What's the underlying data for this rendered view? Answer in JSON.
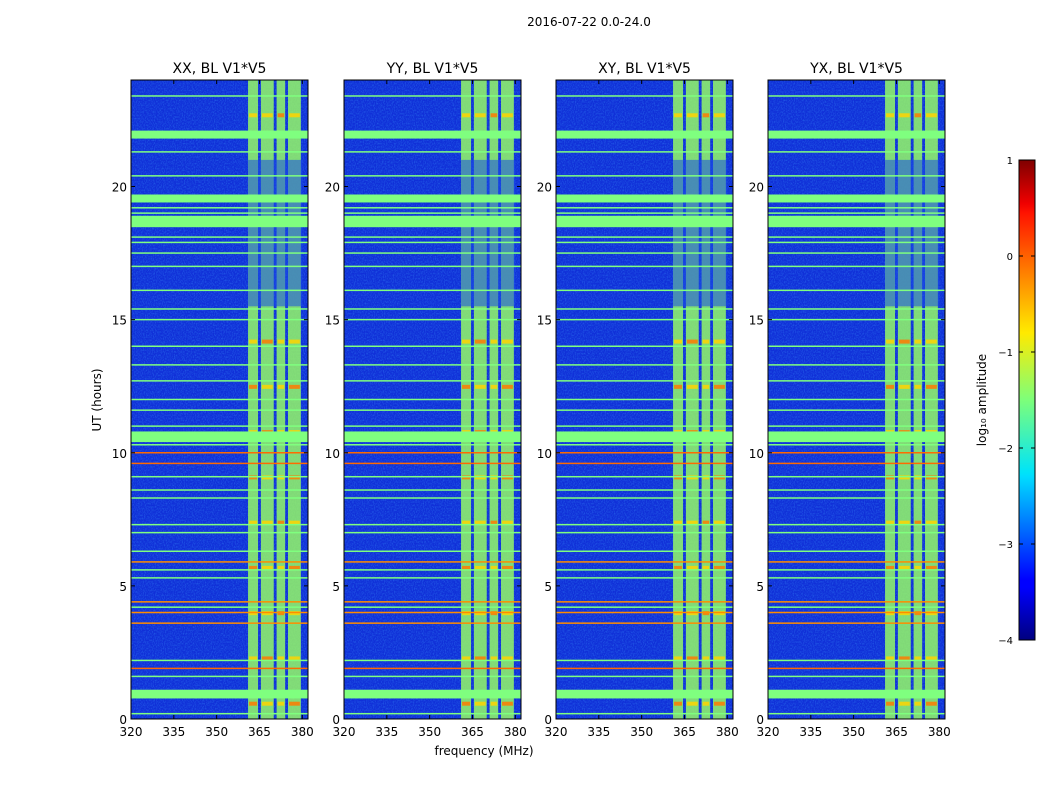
{
  "figure": {
    "suptitle": "2016-07-22 0.0-24.0",
    "xlabel": "frequency (MHz)",
    "ylabel": "UT (hours)"
  },
  "chart_data": {
    "type": "heatmap",
    "title": "2016-07-22 0.0-24.0",
    "xlabel": "frequency (MHz)",
    "ylabel": "UT (hours)",
    "xlim": [
      320,
      382
    ],
    "ylim": [
      0,
      24
    ],
    "xticks": [
      "320",
      "335",
      "350",
      "365",
      "380"
    ],
    "xtick_values": [
      320,
      335,
      350,
      365,
      380
    ],
    "yticks": [
      "0",
      "5",
      "10",
      "15",
      "20"
    ],
    "ytick_values": [
      0,
      5,
      10,
      15,
      20
    ],
    "panels": [
      {
        "title": "XX, BL V1*V5"
      },
      {
        "title": "YY, BL V1*V5"
      },
      {
        "title": "XY, BL V1*V5"
      },
      {
        "title": "YX, BL V1*V5"
      }
    ],
    "colorbar": {
      "label": "log₁₀ amplitude",
      "vmin": -4,
      "vmax": 1,
      "ticks": [
        "1",
        "0",
        "−1",
        "−2",
        "−3",
        "−4"
      ],
      "tick_values": [
        1,
        0,
        -1,
        -2,
        -3,
        -4
      ],
      "colormap": "jet"
    },
    "rfi_band_mhz": [
      361,
      380
    ],
    "rfi_subbands_mhz": [
      [
        361,
        364.5
      ],
      [
        365.5,
        370
      ],
      [
        371,
        374
      ],
      [
        375,
        379.5
      ]
    ],
    "flagged_hours": [
      0.2,
      0.8,
      1.0,
      1.6,
      1.9,
      2.2,
      3.6,
      4.0,
      4.2,
      4.4,
      5.3,
      5.6,
      5.9,
      6.3,
      7.0,
      7.3,
      8.3,
      8.6,
      9.1,
      9.6,
      10.0,
      10.3,
      10.7,
      11.0,
      11.6,
      12.0,
      12.7,
      13.3,
      14.0,
      15.0,
      15.4,
      16.1,
      17.0,
      17.5,
      17.9,
      18.1,
      18.5,
      19.0,
      19.2,
      19.5,
      20.4,
      21.3,
      21.9,
      23.4
    ],
    "flagged_colors": [
      "#7fff7f",
      "#7fff7f",
      "#ff8c00",
      "#7fff7f",
      "#ff6a00",
      "#7fff7f",
      "#ff8c00",
      "#ff8c00",
      "#7fff7f",
      "#ff8c00",
      "#7fff7f",
      "#7fff7f",
      "#ff8c00",
      "#7fff7f",
      "#7fff7f",
      "#7fff7f",
      "#7fff7f",
      "#7fff7f",
      "#7fff7f",
      "#ff6a00",
      "#ff6a00",
      "#7fff7f",
      "#7fff7f",
      "#7fff7f",
      "#7fff7f",
      "#7fff7f",
      "#7fff7f",
      "#7fff7f",
      "#7fff7f",
      "#7fff7f",
      "#7fff7f",
      "#7fff7f",
      "#7fff7f",
      "#7fff7f",
      "#7fff7f",
      "#7fff7f",
      "#7fff7f",
      "#7fff7f",
      "#7fff7f",
      "#7fff7f",
      "#7fff7f",
      "#7fff7f",
      "#7fff7f",
      "#7fff7f"
    ],
    "wide_flagged_bands_hours": [
      [
        0.8,
        1.1
      ],
      [
        10.4,
        10.8
      ],
      [
        18.5,
        18.9
      ],
      [
        19.4,
        19.7
      ],
      [
        21.8,
        22.1
      ]
    ],
    "background_color": "#1030d8"
  }
}
